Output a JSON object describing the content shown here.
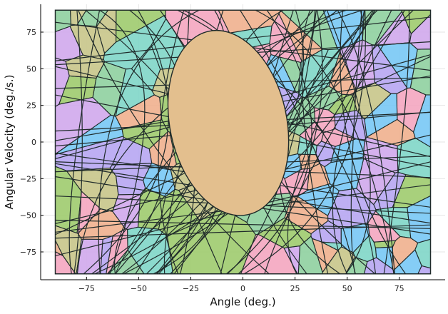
{
  "chart_data": {
    "type": "partition-plot",
    "title": "",
    "xlabel": "Angle (deg.)",
    "ylabel": "Angular Velocity (deg./s.)",
    "xlim": [
      -97,
      97
    ],
    "ylim": [
      -94,
      94
    ],
    "region_bounds": {
      "x": [
        -90,
        90
      ],
      "y": [
        -90,
        90
      ]
    },
    "grid": true,
    "legend": "none",
    "xticks": [
      -75,
      -50,
      -25,
      0,
      25,
      50,
      75
    ],
    "xtick_labels": [
      "−75",
      "−50",
      "−25",
      "0",
      "25",
      "50",
      "75"
    ],
    "yticks": [
      -75,
      -50,
      -25,
      0,
      25,
      50,
      75
    ],
    "ytick_labels": [
      "−75",
      "−50",
      "−25",
      "0",
      "25",
      "50",
      "75"
    ],
    "central_region": {
      "shape": "ellipse",
      "center": [
        -7,
        13
      ],
      "radius_x": 28,
      "radius_y": 64,
      "rotation_deg": -12,
      "color": "#e3bf8e"
    },
    "palette": [
      "#f4a6c0",
      "#7fd6c8",
      "#b7a6f2",
      "#9fcb6e",
      "#78c8f5",
      "#f0b08e",
      "#d0a8ec",
      "#c8c58a",
      "#8fd0a0"
    ],
    "line_color": "#1f2a2a"
  }
}
